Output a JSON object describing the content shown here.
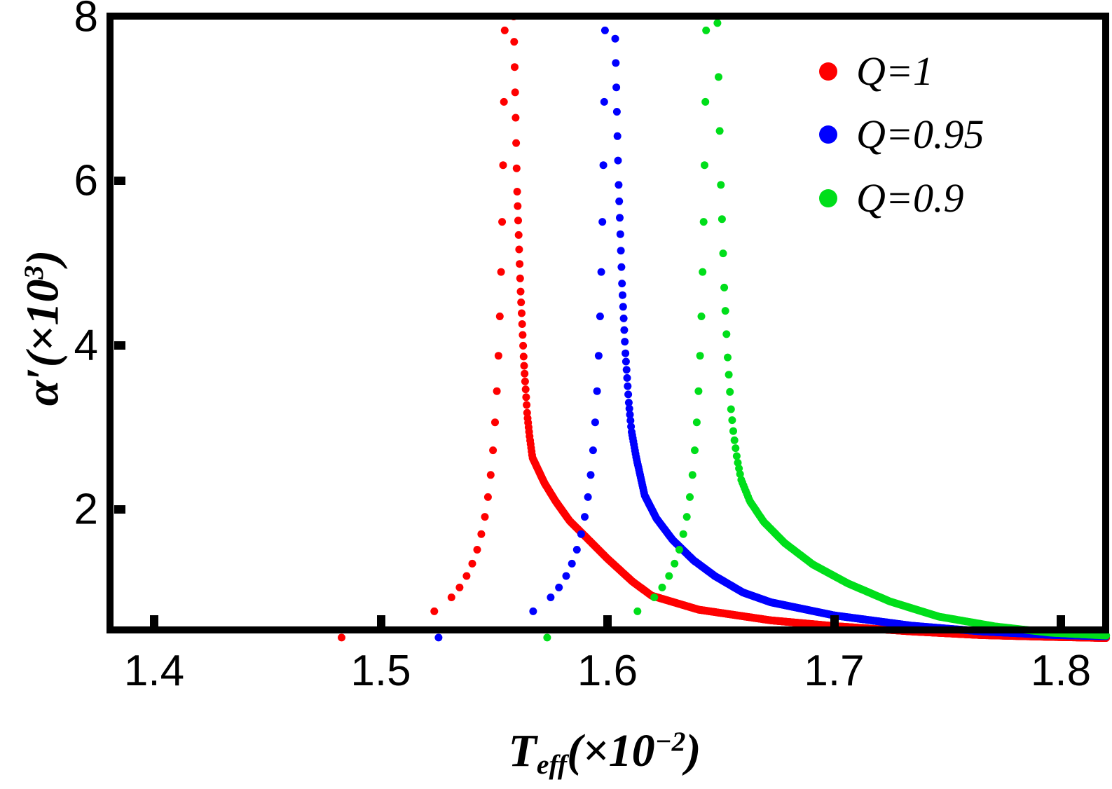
{
  "chart_data": {
    "type": "scatter",
    "title": "",
    "xlabel": "T_eff(×10⁻²)",
    "ylabel": "α′(×10³)",
    "xlabel_parts": {
      "base": "T",
      "sub": "eff",
      "mid": "(×10",
      "sup": "−2",
      "end": ")"
    },
    "ylabel_parts": {
      "base": "α′",
      "mid": "(×10",
      "sup": "3",
      "end": ")"
    },
    "xlim": [
      1.3805,
      1.82
    ],
    "ylim": [
      0.43,
      8.0
    ],
    "grid": false,
    "legend_position": "top-right",
    "frame_color": "#000000",
    "background": "#ffffff",
    "x_ticks": [
      {
        "label": "1.4",
        "value": 1.4
      },
      {
        "label": "1.5",
        "value": 1.5
      },
      {
        "label": "1.6",
        "value": 1.6
      },
      {
        "label": "1.7",
        "value": 1.7
      },
      {
        "label": "1.8",
        "value": 1.8
      }
    ],
    "y_ticks": [
      {
        "label": "8",
        "value": 8
      },
      {
        "label": "6",
        "value": 6
      },
      {
        "label": "4",
        "value": 4
      },
      {
        "label": "2",
        "value": 2
      }
    ],
    "series": [
      {
        "name": "Q=1",
        "color": "#fe0000",
        "marker_radius": 5.5,
        "critical_T_left": 1.5572,
        "critical_T_right": 1.5586,
        "left_branch_points": [
          [
            1.48268,
            0.44
          ],
          [
            1.52358,
            0.76
          ],
          [
            1.53117,
            0.93
          ],
          [
            1.53475,
            1.05
          ],
          [
            1.53785,
            1.19
          ],
          [
            1.54035,
            1.34
          ],
          [
            1.5425,
            1.51
          ],
          [
            1.54433,
            1.7
          ],
          [
            1.54589,
            1.91
          ],
          [
            1.54727,
            2.15
          ],
          [
            1.54846,
            2.42
          ],
          [
            1.54949,
            2.72
          ],
          [
            1.5504,
            3.06
          ],
          [
            1.5512,
            3.44
          ],
          [
            1.55189,
            3.87
          ],
          [
            1.5525,
            4.35
          ],
          [
            1.55304,
            4.89
          ],
          [
            1.55352,
            5.5
          ],
          [
            1.55394,
            6.19
          ],
          [
            1.55431,
            6.96
          ],
          [
            1.55464,
            7.83
          ]
        ],
        "right_branch_anchors": [
          [
            1.5586,
            8.0
          ],
          [
            1.5601,
            5.9
          ],
          [
            1.5616,
            4.7
          ],
          [
            1.5631,
            3.8
          ],
          [
            1.5646,
            3.15
          ],
          [
            1.5658,
            2.85
          ],
          [
            1.5669,
            2.63
          ],
          [
            1.5722,
            2.32
          ],
          [
            1.5771,
            2.1
          ],
          [
            1.5833,
            1.86
          ],
          [
            1.5917,
            1.63
          ],
          [
            1.6,
            1.4
          ],
          [
            1.6111,
            1.12
          ],
          [
            1.6195,
            0.95
          ],
          [
            1.6402,
            0.78
          ],
          [
            1.672,
            0.65
          ],
          [
            1.7,
            0.58
          ],
          [
            1.734,
            0.515
          ],
          [
            1.765,
            0.47
          ],
          [
            1.796,
            0.448
          ],
          [
            1.82,
            0.435
          ]
        ],
        "right_branch_step": 0.00022
      },
      {
        "name": "Q=0.95",
        "color": "#0000fe",
        "marker_radius": 5.5,
        "critical_T_left": 1.6015,
        "critical_T_right": 1.6034,
        "left_branch_points": [
          [
            1.52546,
            0.44
          ],
          [
            1.5672,
            0.76
          ],
          [
            1.57494,
            0.93
          ],
          [
            1.57859,
            1.05
          ],
          [
            1.58175,
            1.19
          ],
          [
            1.5843,
            1.34
          ],
          [
            1.5865,
            1.51
          ],
          [
            1.58837,
            1.7
          ],
          [
            1.58996,
            1.91
          ],
          [
            1.59137,
            2.15
          ],
          [
            1.59259,
            2.42
          ],
          [
            1.59364,
            2.72
          ],
          [
            1.59457,
            3.06
          ],
          [
            1.59538,
            3.44
          ],
          [
            1.59609,
            3.87
          ],
          [
            1.59671,
            4.35
          ],
          [
            1.59726,
            4.89
          ],
          [
            1.59774,
            5.5
          ],
          [
            1.59817,
            6.19
          ],
          [
            1.59855,
            6.96
          ],
          [
            1.59889,
            7.83
          ]
        ],
        "right_branch_anchors": [
          [
            1.6034,
            7.73
          ],
          [
            1.6049,
            5.95
          ],
          [
            1.6064,
            4.75
          ],
          [
            1.6079,
            3.9
          ],
          [
            1.6094,
            3.3
          ],
          [
            1.6106,
            2.95
          ],
          [
            1.6127,
            2.63
          ],
          [
            1.6164,
            2.17
          ],
          [
            1.6216,
            1.89
          ],
          [
            1.6287,
            1.63
          ],
          [
            1.638,
            1.38
          ],
          [
            1.6473,
            1.19
          ],
          [
            1.6597,
            0.99
          ],
          [
            1.672,
            0.87
          ],
          [
            1.7,
            0.71
          ],
          [
            1.734,
            0.585
          ],
          [
            1.765,
            0.515
          ],
          [
            1.796,
            0.472
          ],
          [
            1.82,
            0.456
          ]
        ],
        "right_branch_step": 0.00025
      },
      {
        "name": "Q=0.9",
        "color": "#00de1a",
        "marker_radius": 5.5,
        "critical_T_left": 1.646,
        "critical_T_right": 1.6485,
        "left_branch_points": [
          [
            1.57337,
            0.44
          ],
          [
            1.61324,
            0.76
          ],
          [
            1.62063,
            0.93
          ],
          [
            1.62412,
            1.05
          ],
          [
            1.62714,
            1.19
          ],
          [
            1.62957,
            1.34
          ],
          [
            1.63167,
            1.51
          ],
          [
            1.63346,
            1.7
          ],
          [
            1.63498,
            1.91
          ],
          [
            1.63632,
            2.15
          ],
          [
            1.63749,
            2.42
          ],
          [
            1.63849,
            2.72
          ],
          [
            1.63938,
            3.06
          ],
          [
            1.64015,
            3.44
          ],
          [
            1.64083,
            3.87
          ],
          [
            1.64142,
            4.35
          ],
          [
            1.64195,
            4.89
          ],
          [
            1.64241,
            5.5
          ],
          [
            1.64282,
            6.19
          ],
          [
            1.64318,
            6.96
          ],
          [
            1.6435,
            7.83
          ]
        ],
        "right_branch_anchors": [
          [
            1.6485,
            7.92
          ],
          [
            1.65,
            5.95
          ],
          [
            1.6515,
            4.7
          ],
          [
            1.653,
            3.85
          ],
          [
            1.6545,
            3.22
          ],
          [
            1.6557,
            2.9
          ],
          [
            1.6572,
            2.61
          ],
          [
            1.659,
            2.36
          ],
          [
            1.6628,
            2.1
          ],
          [
            1.6689,
            1.85
          ],
          [
            1.6782,
            1.59
          ],
          [
            1.6906,
            1.33
          ],
          [
            1.706,
            1.1
          ],
          [
            1.7246,
            0.88
          ],
          [
            1.7462,
            0.695
          ],
          [
            1.771,
            0.576
          ],
          [
            1.7957,
            0.499
          ],
          [
            1.82,
            0.465
          ]
        ],
        "right_branch_step": 0.0005
      }
    ]
  }
}
